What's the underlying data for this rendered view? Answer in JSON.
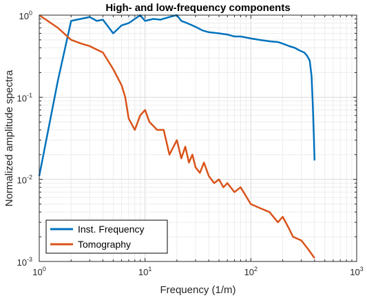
{
  "chart_data": {
    "type": "line",
    "title": "High- and low-frequency components",
    "xlabel": "Frequency (1/m)",
    "ylabel": "Normalized amplitude spectra",
    "xscale": "log",
    "yscale": "log",
    "xlim": [
      1,
      1000
    ],
    "ylim": [
      0.001,
      1
    ],
    "grid": true,
    "minor_grid": true,
    "legend_position": "bottom-left",
    "x_ticks": [
      {
        "base": "10",
        "exp": "0"
      },
      {
        "base": "10",
        "exp": "1"
      },
      {
        "base": "10",
        "exp": "2"
      },
      {
        "base": "10",
        "exp": "3"
      }
    ],
    "y_ticks": [
      {
        "base": "10",
        "exp": "-3"
      },
      {
        "base": "10",
        "exp": "-2"
      },
      {
        "base": "10",
        "exp": "-1"
      },
      {
        "base": "10",
        "exp": "0"
      }
    ],
    "series": [
      {
        "name": "Inst. Frequency",
        "color": "#0072BD",
        "x": [
          1,
          1.5,
          2,
          3,
          3.5,
          4,
          5,
          6,
          7,
          8,
          9,
          10,
          12,
          14,
          17,
          20,
          22,
          25,
          30,
          35,
          40,
          50,
          60,
          70,
          80,
          100,
          120,
          150,
          180,
          200,
          230,
          260,
          290,
          320,
          340,
          360,
          375,
          385,
          395,
          400
        ],
        "y": [
          0.011,
          0.16,
          0.85,
          0.95,
          0.85,
          0.88,
          0.6,
          0.75,
          0.8,
          0.9,
          1.0,
          0.85,
          0.9,
          0.88,
          0.95,
          1.0,
          0.85,
          0.8,
          0.72,
          0.65,
          0.62,
          0.6,
          0.58,
          0.55,
          0.55,
          0.52,
          0.5,
          0.48,
          0.47,
          0.45,
          0.42,
          0.4,
          0.37,
          0.35,
          0.32,
          0.28,
          0.18,
          0.08,
          0.03,
          0.017
        ]
      },
      {
        "name": "Tomography",
        "color": "#D95319",
        "x": [
          1,
          1.5,
          2,
          2.5,
          3,
          3.5,
          4,
          5,
          6,
          6.5,
          7,
          8,
          9,
          10,
          11,
          13,
          15,
          17,
          20,
          22,
          24,
          26,
          28,
          30,
          33,
          36,
          40,
          45,
          50,
          55,
          60,
          70,
          80,
          100,
          120,
          150,
          180,
          200,
          230,
          250,
          300,
          350,
          400
        ],
        "y": [
          1.0,
          0.7,
          0.5,
          0.45,
          0.42,
          0.38,
          0.35,
          0.22,
          0.14,
          0.1,
          0.055,
          0.04,
          0.06,
          0.07,
          0.05,
          0.04,
          0.04,
          0.02,
          0.03,
          0.018,
          0.025,
          0.016,
          0.02,
          0.014,
          0.012,
          0.016,
          0.011,
          0.009,
          0.01,
          0.008,
          0.009,
          0.007,
          0.008,
          0.005,
          0.0045,
          0.004,
          0.003,
          0.0035,
          0.0025,
          0.002,
          0.0018,
          0.0014,
          0.0011
        ]
      }
    ]
  }
}
